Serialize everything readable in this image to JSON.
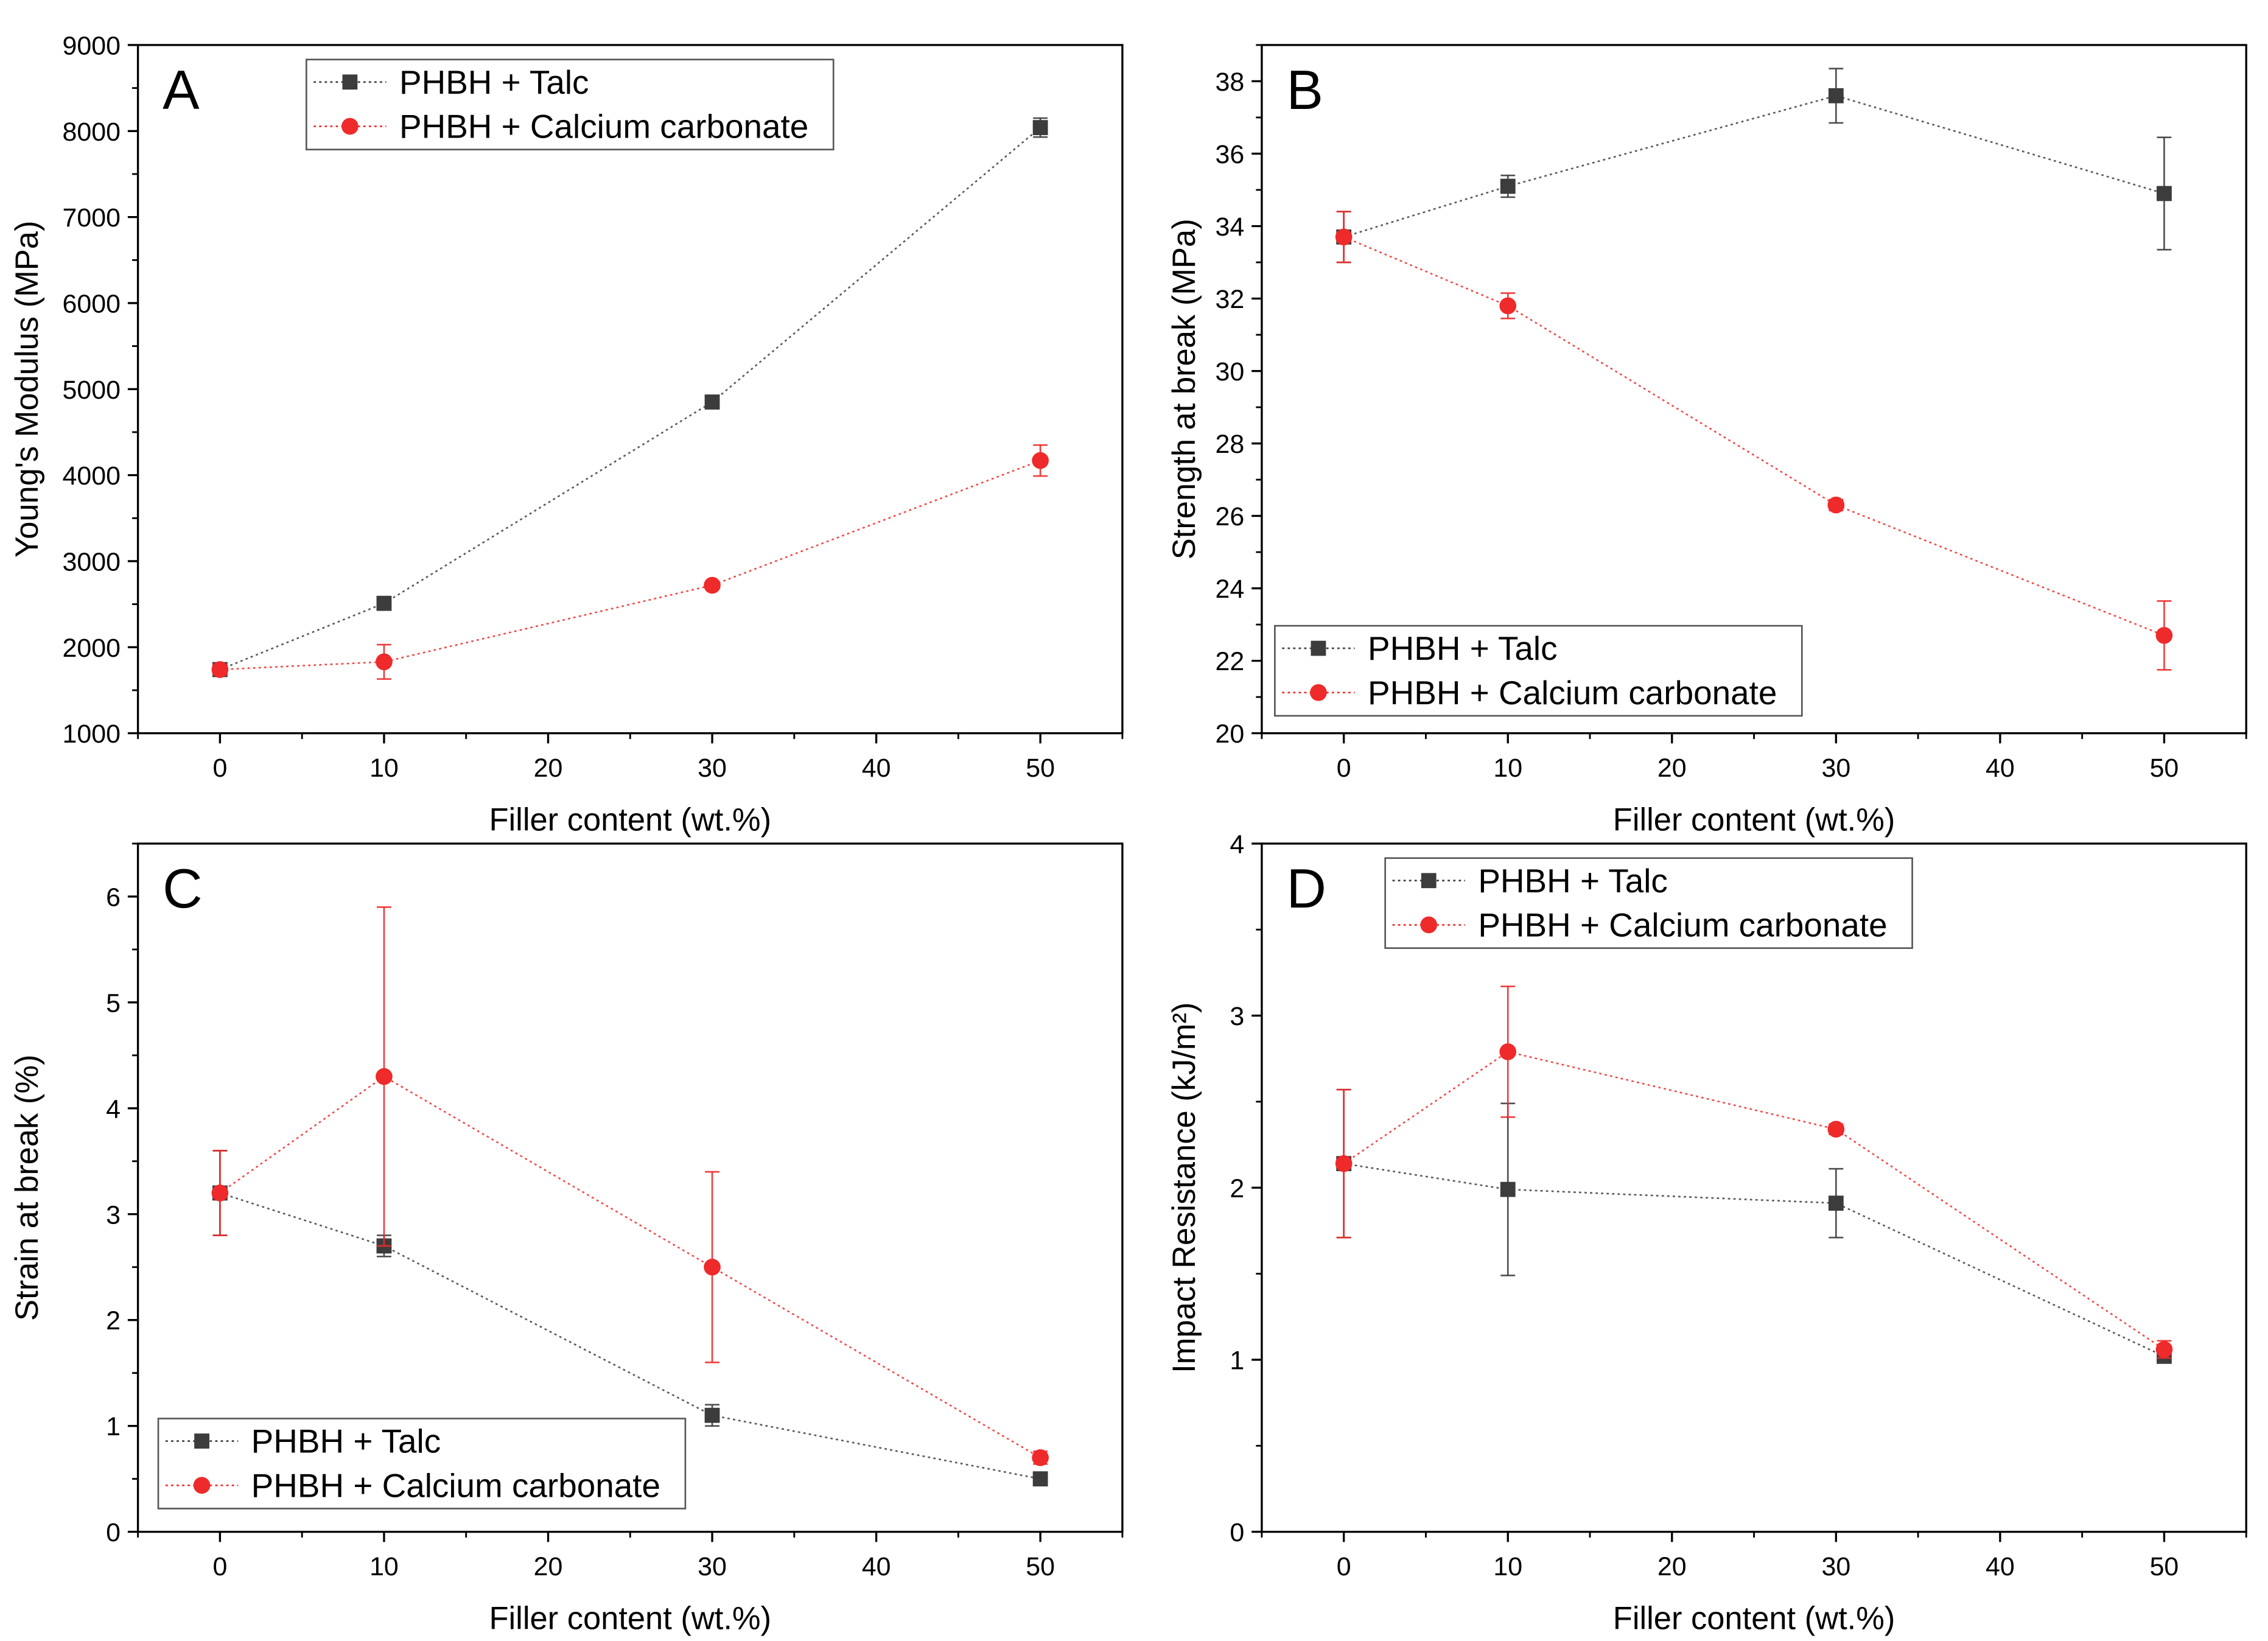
{
  "colors": {
    "talc": "#3c3c3c",
    "calcium": "#ee2a2a",
    "axis": "#000000"
  },
  "chart_data": [
    {
      "type": "line",
      "panel_label": "A",
      "xlabel": "Filler content (wt.%)",
      "ylabel": "Young's Modulus (MPa)",
      "xlim": [
        -5,
        55
      ],
      "ylim": [
        1000,
        9000
      ],
      "xticks": [
        0,
        10,
        20,
        30,
        40,
        50
      ],
      "yticks": [
        1000,
        2000,
        3000,
        4000,
        5000,
        6000,
        7000,
        8000,
        9000
      ],
      "legend_position": "top-left",
      "x": [
        0,
        10,
        30,
        50
      ],
      "series": [
        {
          "name": "PHBH + Talc",
          "marker": "square",
          "color": "#3c3c3c",
          "values": [
            1740,
            2510,
            4850,
            8040
          ],
          "errors": [
            60,
            40,
            30,
            110
          ]
        },
        {
          "name": "PHBH + Calcium carbonate",
          "marker": "circle",
          "color": "#ee2a2a",
          "values": [
            1740,
            1830,
            2720,
            4170
          ],
          "errors": [
            60,
            200,
            40,
            180
          ]
        }
      ]
    },
    {
      "type": "line",
      "panel_label": "B",
      "xlabel": "Filler content (wt.%)",
      "ylabel": "Strength at break (MPa)",
      "xlim": [
        -5,
        55
      ],
      "ylim": [
        20,
        39
      ],
      "xticks": [
        0,
        10,
        20,
        30,
        40,
        50
      ],
      "yticks": [
        20,
        22,
        24,
        26,
        28,
        30,
        32,
        34,
        36,
        38
      ],
      "legend_position": "bottom-left",
      "x": [
        0,
        10,
        30,
        50
      ],
      "series": [
        {
          "name": "PHBH + Talc",
          "marker": "square",
          "color": "#3c3c3c",
          "values": [
            33.7,
            35.1,
            37.6,
            34.9
          ],
          "errors": [
            0.7,
            0.3,
            0.75,
            1.55
          ]
        },
        {
          "name": "PHBH + Calcium carbonate",
          "marker": "circle",
          "color": "#ee2a2a",
          "values": [
            33.7,
            31.8,
            26.3,
            22.7
          ],
          "errors": [
            0.7,
            0.35,
            0.15,
            0.95
          ]
        }
      ]
    },
    {
      "type": "line",
      "panel_label": "C",
      "xlabel": "Filler content (wt.%)",
      "ylabel": "Strain at break (%)",
      "xlim": [
        -5,
        55
      ],
      "ylim": [
        0,
        6.5
      ],
      "xticks": [
        0,
        10,
        20,
        30,
        40,
        50
      ],
      "yticks": [
        0,
        1,
        2,
        3,
        4,
        5,
        6
      ],
      "legend_position": "bottom-left",
      "x": [
        0,
        10,
        30,
        50
      ],
      "series": [
        {
          "name": "PHBH + Talc",
          "marker": "square",
          "color": "#3c3c3c",
          "values": [
            3.2,
            2.7,
            1.1,
            0.5
          ],
          "errors": [
            0.4,
            0.1,
            0.1,
            0.04
          ]
        },
        {
          "name": "PHBH + Calcium carbonate",
          "marker": "circle",
          "color": "#ee2a2a",
          "values": [
            3.2,
            4.3,
            2.5,
            0.7
          ],
          "errors": [
            0.4,
            1.6,
            0.9,
            0.06
          ]
        }
      ]
    },
    {
      "type": "line",
      "panel_label": "D",
      "xlabel": "Filler content (wt.%)",
      "ylabel": "Impact Resistance (kJ/m²)",
      "xlim": [
        -5,
        55
      ],
      "ylim": [
        0,
        4
      ],
      "xticks": [
        0,
        10,
        20,
        30,
        40,
        50
      ],
      "yticks": [
        0,
        1,
        2,
        3,
        4
      ],
      "legend_position": "top-right",
      "x": [
        0,
        10,
        30,
        50
      ],
      "series": [
        {
          "name": "PHBH + Talc",
          "marker": "square",
          "color": "#3c3c3c",
          "values": [
            2.14,
            1.99,
            1.91,
            1.02
          ],
          "errors": [
            0.43,
            0.5,
            0.2,
            0.03
          ]
        },
        {
          "name": "PHBH + Calcium carbonate",
          "marker": "circle",
          "color": "#ee2a2a",
          "values": [
            2.14,
            2.79,
            2.34,
            1.06
          ],
          "errors": [
            0.43,
            0.38,
            0.03,
            0.05
          ]
        }
      ]
    }
  ]
}
